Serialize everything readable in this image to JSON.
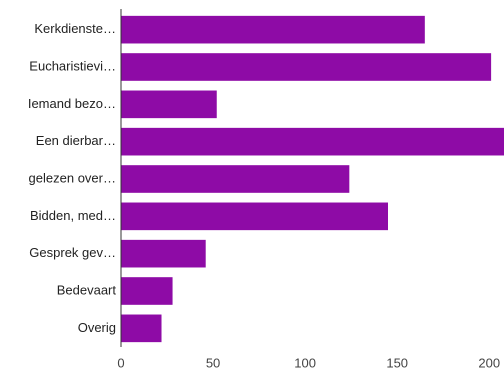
{
  "chart_data": {
    "type": "bar",
    "orientation": "horizontal",
    "categories": [
      "Kerkdienste…",
      "Eucharistievi…",
      "Iemand bezo…",
      "Een dierbar…",
      "gelezen over…",
      "Bidden, med…",
      "Gesprek gev…",
      "Bedevaart",
      "Overig"
    ],
    "values": [
      165,
      201,
      52,
      208,
      124,
      145,
      46,
      28,
      22
    ],
    "color": "#8e0ba6",
    "xlim": [
      0,
      208
    ],
    "xticks": [
      0,
      50,
      100,
      150,
      200
    ],
    "grid": false
  }
}
